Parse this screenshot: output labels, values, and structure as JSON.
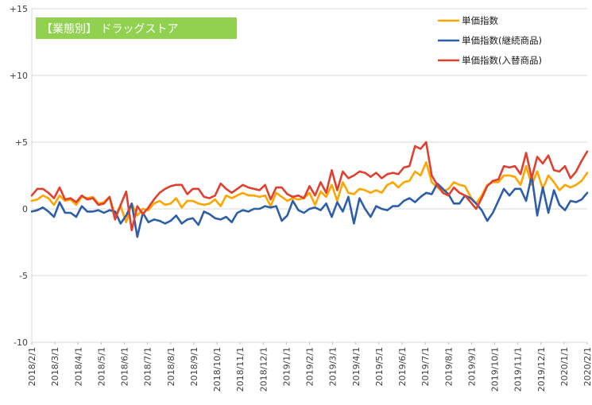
{
  "chart_data": {
    "type": "line",
    "title": "【業態別】 ドラッグストア",
    "xlabel": "",
    "ylabel": "",
    "ylim": [
      -10,
      15
    ],
    "yticks": [
      -10,
      -5,
      0,
      5,
      10,
      15
    ],
    "ytick_labels": [
      "-10",
      "-5",
      "0",
      "+5",
      "+10",
      "+15"
    ],
    "xtick_labels": [
      "2018/2/1",
      "2018/3/1",
      "2018/4/1",
      "2018/5/1",
      "2018/6/1",
      "2018/7/1",
      "2018/8/1",
      "2018/9/1",
      "2018/10/1",
      "2018/11/1",
      "2018/12/1",
      "2019/1/1",
      "2019/2/1",
      "2019/3/1",
      "2019/4/1",
      "2019/5/1",
      "2019/6/1",
      "2019/7/1",
      "2019/8/1",
      "2019/9/1",
      "2019/10/1",
      "2019/11/1",
      "2019/12/1",
      "2020/1/1",
      "2020/2/1"
    ],
    "grid": "horizontal",
    "legend_position": "top-right",
    "series": [
      {
        "name": "単価指数",
        "color": "#FFA500",
        "values": [
          0.6,
          0.7,
          1.0,
          0.8,
          0.3,
          1.0,
          0.6,
          0.7,
          0.3,
          0.9,
          0.8,
          0.9,
          0.4,
          0.5,
          0.9,
          -0.5,
          0.2,
          -1.0,
          0.4,
          -0.5,
          0.0,
          -0.1,
          0.4,
          0.6,
          0.3,
          0.4,
          0.8,
          0.1,
          0.6,
          0.6,
          0.4,
          0.3,
          0.4,
          0.7,
          0.2,
          1.0,
          0.8,
          1.0,
          1.2,
          1.0,
          1.0,
          0.9,
          1.0,
          0.2,
          1.2,
          0.9,
          0.6,
          0.8,
          0.7,
          0.8,
          1.2,
          0.3,
          1.3,
          0.9,
          1.8,
          0.6,
          2.0,
          1.2,
          1.1,
          1.5,
          1.4,
          1.2,
          1.4,
          1.2,
          1.8,
          2.0,
          1.6,
          2.0,
          2.1,
          2.8,
          2.5,
          3.5,
          2.0,
          1.6,
          1.3,
          1.5,
          2.0,
          1.8,
          1.7,
          0.9,
          0.4,
          1.0,
          1.8,
          2.0,
          2.0,
          2.5,
          2.5,
          2.4,
          1.8,
          3.2,
          1.8,
          2.8,
          1.5,
          2.5,
          2.0,
          1.4,
          1.8,
          1.6,
          1.8,
          2.1,
          2.7
        ]
      },
      {
        "name": "単価指数(継続商品)",
        "color": "#2E5EAA",
        "values": [
          -0.2,
          -0.1,
          0.1,
          -0.2,
          -0.6,
          0.5,
          -0.3,
          -0.3,
          -0.6,
          0.2,
          -0.2,
          -0.2,
          -0.1,
          -0.3,
          -0.1,
          -0.2,
          -1.1,
          -0.5,
          0.4,
          -2.1,
          -0.3,
          -1.0,
          -0.8,
          -0.9,
          -1.1,
          -0.9,
          -0.5,
          -1.1,
          -0.8,
          -0.7,
          -1.2,
          -0.2,
          -0.4,
          -0.7,
          -0.8,
          -0.6,
          -1.0,
          -0.3,
          -0.1,
          -0.2,
          0.0,
          0.0,
          0.2,
          0.1,
          0.2,
          -0.9,
          -0.5,
          0.6,
          -0.1,
          -0.3,
          0.0,
          0.1,
          -0.1,
          0.4,
          -0.6,
          0.5,
          -0.2,
          0.9,
          -1.1,
          0.8,
          0.0,
          -0.6,
          0.2,
          0.0,
          -0.1,
          0.2,
          0.2,
          0.6,
          0.8,
          0.5,
          0.9,
          1.2,
          1.1,
          1.9,
          1.5,
          1.1,
          0.4,
          0.4,
          1.0,
          0.8,
          0.4,
          -0.1,
          -0.9,
          -0.3,
          0.6,
          1.5,
          1.0,
          1.5,
          1.5,
          0.6,
          2.5,
          -0.5,
          1.6,
          -0.3,
          1.4,
          0.3,
          -0.1,
          0.6,
          0.5,
          0.7,
          1.2
        ]
      },
      {
        "name": "単価指数(入替商品)",
        "color": "#E0402F",
        "values": [
          1.0,
          1.5,
          1.5,
          1.2,
          0.8,
          1.6,
          0.7,
          0.8,
          0.5,
          1.0,
          0.7,
          0.8,
          0.3,
          0.4,
          0.9,
          -0.8,
          0.3,
          1.3,
          -1.6,
          0.2,
          -0.4,
          0.1,
          0.7,
          1.2,
          1.5,
          1.7,
          1.8,
          1.8,
          1.1,
          1.5,
          1.5,
          0.9,
          0.8,
          1.0,
          1.9,
          1.5,
          1.2,
          1.5,
          1.8,
          1.6,
          1.5,
          1.4,
          1.8,
          0.7,
          1.6,
          1.6,
          1.1,
          0.9,
          1.0,
          0.8,
          1.7,
          1.0,
          2.0,
          1.2,
          2.9,
          1.4,
          2.8,
          2.3,
          2.5,
          2.8,
          2.7,
          2.4,
          2.7,
          2.3,
          2.6,
          2.7,
          2.6,
          3.1,
          3.2,
          4.7,
          4.5,
          5.0,
          2.5,
          1.8,
          1.2,
          1.0,
          1.6,
          1.2,
          1.0,
          0.5,
          0.0,
          0.8,
          1.7,
          2.1,
          2.2,
          3.2,
          3.1,
          3.2,
          2.6,
          4.2,
          2.3,
          3.9,
          3.4,
          4.0,
          2.9,
          2.8,
          3.2,
          2.3,
          2.8,
          3.6,
          4.3
        ]
      }
    ]
  }
}
